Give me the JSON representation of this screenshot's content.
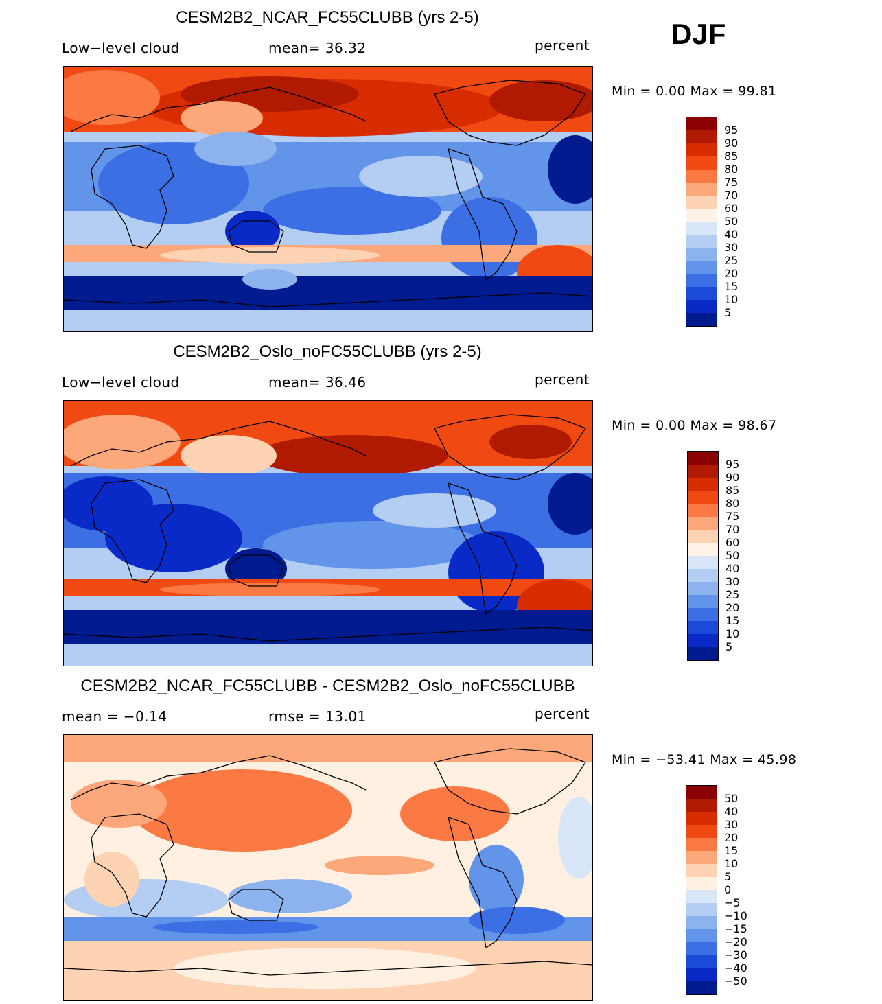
{
  "season": "DJF",
  "panels": [
    {
      "title": "CESM2B2_NCAR_FC55CLUBB (yrs 2-5)",
      "left_label": "Low−level cloud",
      "center_label": "mean=   36.32",
      "units": "percent",
      "minmax": "Min =    0.00 Max =   99.81",
      "legend": {
        "labels": [
          "95",
          "90",
          "85",
          "80",
          "75",
          "70",
          "60",
          "50",
          "40",
          "30",
          "25",
          "20",
          "15",
          "10",
          "5"
        ],
        "colors": [
          "#8b0000",
          "#b01a00",
          "#d72b00",
          "#f04a12",
          "#fb7a44",
          "#fda87a",
          "#fdd3b4",
          "#fff2e6",
          "#d8e6f8",
          "#b3cdf3",
          "#8db3ee",
          "#6294ea",
          "#3b6fe3",
          "#1b4ad8",
          "#0a2ac8",
          "#001a90"
        ]
      }
    },
    {
      "title": "CESM2B2_Oslo_noFC55CLUBB (yrs 2-5)",
      "left_label": "Low−level cloud",
      "center_label": "mean=   36.46",
      "units": "percent",
      "minmax": "Min =    0.00 Max =   98.67",
      "legend": {
        "labels": [
          "95",
          "90",
          "85",
          "80",
          "75",
          "70",
          "60",
          "50",
          "40",
          "30",
          "25",
          "20",
          "15",
          "10",
          "5"
        ],
        "colors": [
          "#8b0000",
          "#b01a00",
          "#d72b00",
          "#f04a12",
          "#fb7a44",
          "#fda87a",
          "#fdd3b4",
          "#fff2e6",
          "#d8e6f8",
          "#b3cdf3",
          "#8db3ee",
          "#6294ea",
          "#3b6fe3",
          "#1b4ad8",
          "#0a2ac8",
          "#001a90"
        ]
      }
    },
    {
      "title": "CESM2B2_NCAR_FC55CLUBB - CESM2B2_Oslo_noFC55CLUBB",
      "left_label": "mean =   −0.14",
      "center_label": "rmse =   13.01",
      "units": "percent",
      "minmax": "Min = −53.41 Max =   45.98",
      "legend": {
        "labels": [
          "50",
          "40",
          "30",
          "20",
          "15",
          "10",
          "5",
          "0",
          "−5",
          "−10",
          "−15",
          "−20",
          "−30",
          "−40",
          "−50"
        ],
        "colors": [
          "#8b0000",
          "#b01a00",
          "#d72b00",
          "#f04a12",
          "#fb7a44",
          "#fda87a",
          "#fdd3b4",
          "#fff0e2",
          "#d8e6f8",
          "#b3cdf3",
          "#8db3ee",
          "#6294ea",
          "#3b6fe3",
          "#1b4ad8",
          "#0a2ac8",
          "#001a90"
        ]
      }
    }
  ]
}
